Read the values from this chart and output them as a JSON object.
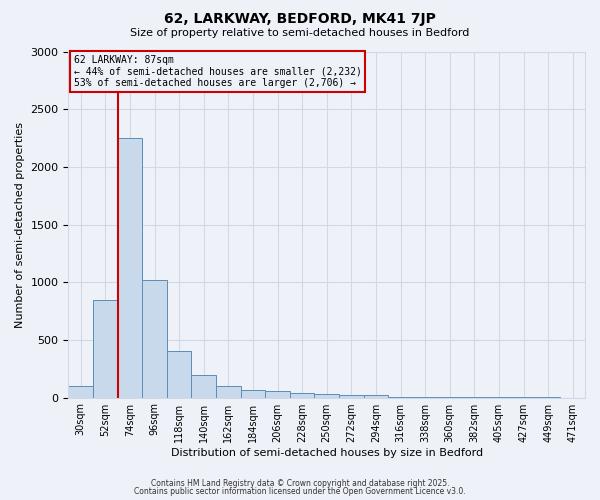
{
  "title1": "62, LARKWAY, BEDFORD, MK41 7JP",
  "title2": "Size of property relative to semi-detached houses in Bedford",
  "xlabel": "Distribution of semi-detached houses by size in Bedford",
  "ylabel": "Number of semi-detached properties",
  "annotation_title": "62 LARKWAY: 87sqm",
  "annotation_line1": "← 44% of semi-detached houses are smaller (2,232)",
  "annotation_line2": "53% of semi-detached houses are larger (2,706) →",
  "footer1": "Contains HM Land Registry data © Crown copyright and database right 2025.",
  "footer2": "Contains public sector information licensed under the Open Government Licence v3.0.",
  "bar_color": "#c9d9ec",
  "bar_edge_color": "#5b8db8",
  "grid_color": "#d0d8e8",
  "bg_color": "#eef2f8",
  "red_line_color": "#cc0000",
  "categories": [
    "30sqm",
    "52sqm",
    "74sqm",
    "96sqm",
    "118sqm",
    "140sqm",
    "162sqm",
    "184sqm",
    "206sqm",
    "228sqm",
    "250sqm",
    "272sqm",
    "294sqm",
    "316sqm",
    "338sqm",
    "360sqm",
    "382sqm",
    "405sqm",
    "427sqm",
    "449sqm",
    "471sqm"
  ],
  "values": [
    100,
    850,
    2250,
    1020,
    400,
    200,
    100,
    70,
    55,
    40,
    30,
    25,
    20,
    8,
    5,
    3,
    2,
    2,
    1,
    1,
    0
  ],
  "red_line_bin_index": 1,
  "ylim": [
    0,
    3000
  ],
  "yticks": [
    0,
    500,
    1000,
    1500,
    2000,
    2500,
    3000
  ]
}
